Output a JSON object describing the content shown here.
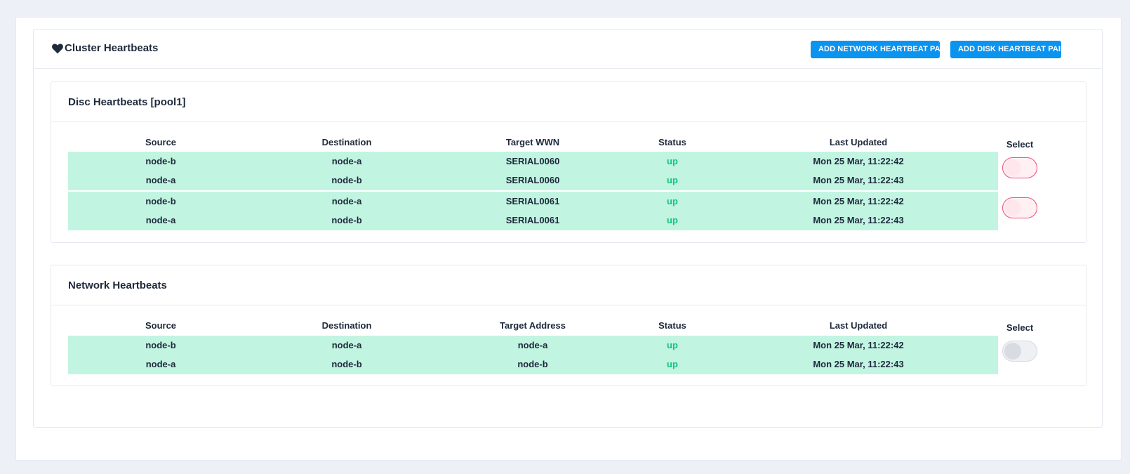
{
  "card": {
    "title": "Cluster Heartbeats",
    "icon": "heart-icon",
    "buttons": {
      "add_network": "ADD NETWORK HEARTBEAT PAIR",
      "add_disk": "ADD DISK HEARTBEAT PAIR"
    }
  },
  "disc": {
    "title": "Disc Heartbeats [pool1]",
    "columns": [
      "Source",
      "Destination",
      "Target WWN",
      "Status",
      "Last Updated"
    ],
    "select_label": "Select",
    "groups": [
      {
        "selected": true,
        "rows": [
          {
            "source": "node-b",
            "destination": "node-a",
            "target": "SERIAL0060",
            "status": "up",
            "updated": "Mon 25 Mar, 11:22:42"
          },
          {
            "source": "node-a",
            "destination": "node-b",
            "target": "SERIAL0060",
            "status": "up",
            "updated": "Mon 25 Mar, 11:22:43"
          }
        ]
      },
      {
        "selected": true,
        "rows": [
          {
            "source": "node-b",
            "destination": "node-a",
            "target": "SERIAL0061",
            "status": "up",
            "updated": "Mon 25 Mar, 11:22:42"
          },
          {
            "source": "node-a",
            "destination": "node-b",
            "target": "SERIAL0061",
            "status": "up",
            "updated": "Mon 25 Mar, 11:22:43"
          }
        ]
      }
    ]
  },
  "network": {
    "title": "Network Heartbeats",
    "columns": [
      "Source",
      "Destination",
      "Target Address",
      "Status",
      "Last Updated"
    ],
    "select_label": "Select",
    "groups": [
      {
        "selected": false,
        "rows": [
          {
            "source": "node-b",
            "destination": "node-a",
            "target": "node-a",
            "status": "up",
            "updated": "Mon 25 Mar, 11:22:42"
          },
          {
            "source": "node-a",
            "destination": "node-b",
            "target": "node-b",
            "status": "up",
            "updated": "Mon 25 Mar, 11:22:43"
          }
        ]
      }
    ]
  },
  "colors": {
    "accent": "#0b93f0",
    "row_bg": "#c1f4e1",
    "status_up": "#10c77d",
    "toggle_on_border": "#ef4f7a"
  }
}
